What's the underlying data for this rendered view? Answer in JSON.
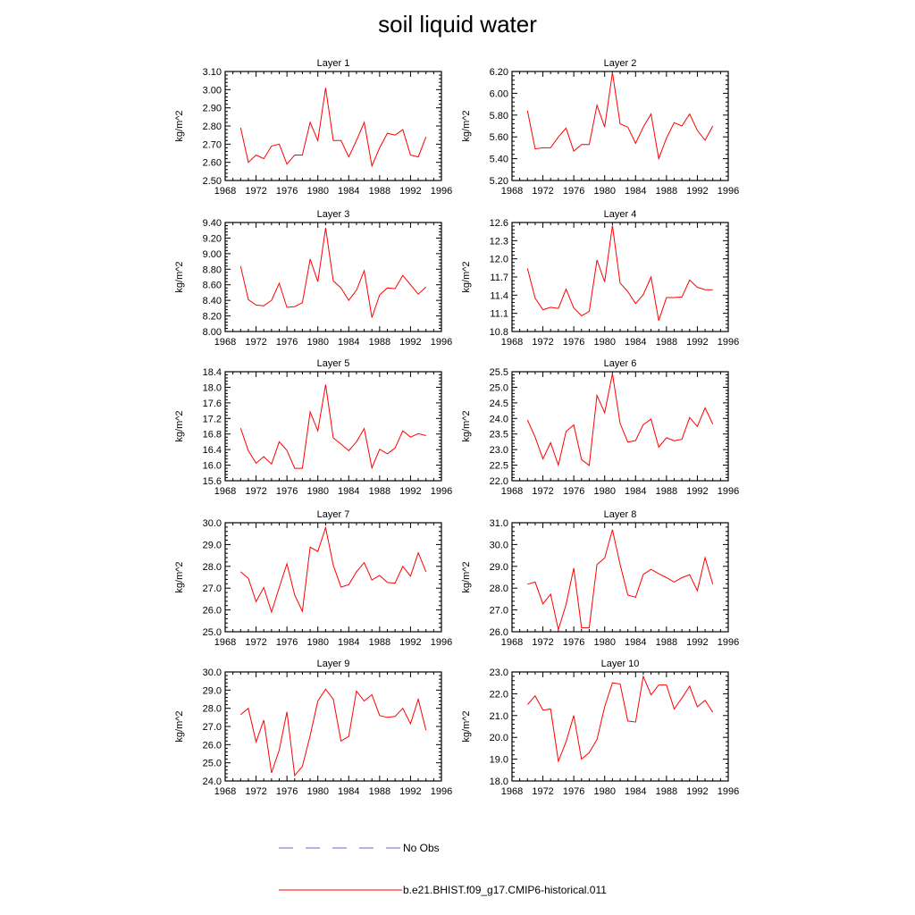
{
  "title": "soil liquid water",
  "legend": {
    "obs_label": "No Obs",
    "model_label": "b.e21.BHIST.f09_g17.CMIP6-historical.011",
    "obs_color": "#6666cc",
    "model_color": "#ff0000"
  },
  "chart_data": [
    {
      "type": "line",
      "title": "Layer 1",
      "ylabel": "kg/m^2",
      "xlim": [
        1968,
        1996
      ],
      "xticks": [
        1968,
        1972,
        1976,
        1980,
        1984,
        1988,
        1992,
        1996
      ],
      "ylim": [
        2.5,
        3.1
      ],
      "yticks": [
        2.5,
        2.6,
        2.7,
        2.8,
        2.9,
        3.0,
        3.1
      ],
      "ytick_decimals": 2,
      "series": [
        {
          "name": "b.e21.BHIST.f09_g17.CMIP6-historical.011",
          "color": "#ff0000",
          "x": [
            1970,
            1971,
            1972,
            1973,
            1974,
            1975,
            1976,
            1977,
            1978,
            1979,
            1980,
            1981,
            1982,
            1983,
            1984,
            1985,
            1986,
            1987,
            1988,
            1989,
            1990,
            1991,
            1992,
            1993,
            1994
          ],
          "y": [
            2.79,
            2.6,
            2.64,
            2.62,
            2.69,
            2.7,
            2.59,
            2.64,
            2.64,
            2.82,
            2.72,
            3.01,
            2.72,
            2.72,
            2.63,
            2.72,
            2.82,
            2.58,
            2.68,
            2.76,
            2.75,
            2.78,
            2.64,
            2.63,
            2.74
          ]
        }
      ]
    },
    {
      "type": "line",
      "title": "Layer 2",
      "ylabel": "kg/m^2",
      "xlim": [
        1968,
        1996
      ],
      "xticks": [
        1968,
        1972,
        1976,
        1980,
        1984,
        1988,
        1992,
        1996
      ],
      "ylim": [
        5.2,
        6.2
      ],
      "yticks": [
        5.2,
        5.4,
        5.6,
        5.8,
        6.0,
        6.2
      ],
      "ytick_decimals": 2,
      "series": [
        {
          "name": "b.e21.BHIST.f09_g17.CMIP6-historical.011",
          "color": "#ff0000",
          "x": [
            1970,
            1971,
            1972,
            1973,
            1974,
            1975,
            1976,
            1977,
            1978,
            1979,
            1980,
            1981,
            1982,
            1983,
            1984,
            1985,
            1986,
            1987,
            1988,
            1989,
            1990,
            1991,
            1992,
            1993,
            1994
          ],
          "y": [
            5.84,
            5.49,
            5.5,
            5.5,
            5.6,
            5.68,
            5.47,
            5.53,
            5.53,
            5.89,
            5.69,
            6.19,
            5.72,
            5.69,
            5.54,
            5.69,
            5.81,
            5.4,
            5.59,
            5.73,
            5.7,
            5.81,
            5.66,
            5.57,
            5.7
          ]
        }
      ]
    },
    {
      "type": "line",
      "title": "Layer 3",
      "ylabel": "kg/m^2",
      "xlim": [
        1968,
        1996
      ],
      "xticks": [
        1968,
        1972,
        1976,
        1980,
        1984,
        1988,
        1992,
        1996
      ],
      "ylim": [
        8.0,
        9.4
      ],
      "yticks": [
        8.0,
        8.2,
        8.4,
        8.6,
        8.8,
        9.0,
        9.2,
        9.4
      ],
      "ytick_decimals": 2,
      "series": [
        {
          "name": "b.e21.BHIST.f09_g17.CMIP6-historical.011",
          "color": "#ff0000",
          "x": [
            1970,
            1971,
            1972,
            1973,
            1974,
            1975,
            1976,
            1977,
            1978,
            1979,
            1980,
            1981,
            1982,
            1983,
            1984,
            1985,
            1986,
            1987,
            1988,
            1989,
            1990,
            1991,
            1992,
            1993,
            1994
          ],
          "y": [
            8.84,
            8.41,
            8.34,
            8.33,
            8.4,
            8.62,
            8.31,
            8.32,
            8.37,
            8.93,
            8.64,
            9.33,
            8.65,
            8.56,
            8.4,
            8.53,
            8.78,
            8.18,
            8.47,
            8.56,
            8.55,
            8.72,
            8.6,
            8.48,
            8.57
          ]
        }
      ]
    },
    {
      "type": "line",
      "title": "Layer 4",
      "ylabel": "kg/m^2",
      "xlim": [
        1968,
        1996
      ],
      "xticks": [
        1968,
        1972,
        1976,
        1980,
        1984,
        1988,
        1992,
        1996
      ],
      "ylim": [
        10.8,
        12.6
      ],
      "yticks": [
        10.8,
        11.1,
        11.4,
        11.7,
        12.0,
        12.3,
        12.6
      ],
      "ytick_decimals": 1,
      "series": [
        {
          "name": "b.e21.BHIST.f09_g17.CMIP6-historical.011",
          "color": "#ff0000",
          "x": [
            1970,
            1971,
            1972,
            1973,
            1974,
            1975,
            1976,
            1977,
            1978,
            1979,
            1980,
            1981,
            1982,
            1983,
            1984,
            1985,
            1986,
            1987,
            1988,
            1989,
            1990,
            1991,
            1992,
            1993,
            1994
          ],
          "y": [
            11.84,
            11.35,
            11.16,
            11.2,
            11.18,
            11.5,
            11.19,
            11.06,
            11.13,
            11.98,
            11.62,
            12.55,
            11.6,
            11.46,
            11.26,
            11.41,
            11.7,
            10.98,
            11.36,
            11.36,
            11.37,
            11.65,
            11.53,
            11.49,
            11.49
          ]
        }
      ]
    },
    {
      "type": "line",
      "title": "Layer 5",
      "ylabel": "kg/m^2",
      "xlim": [
        1968,
        1996
      ],
      "xticks": [
        1968,
        1972,
        1976,
        1980,
        1984,
        1988,
        1992,
        1996
      ],
      "ylim": [
        15.6,
        18.4
      ],
      "yticks": [
        15.6,
        16.0,
        16.4,
        16.8,
        17.2,
        17.6,
        18.0,
        18.4
      ],
      "ytick_decimals": 1,
      "series": [
        {
          "name": "b.e21.BHIST.f09_g17.CMIP6-historical.011",
          "color": "#ff0000",
          "x": [
            1970,
            1971,
            1972,
            1973,
            1974,
            1975,
            1976,
            1977,
            1978,
            1979,
            1980,
            1981,
            1982,
            1983,
            1984,
            1985,
            1986,
            1987,
            1988,
            1989,
            1990,
            1991,
            1992,
            1993,
            1994
          ],
          "y": [
            16.95,
            16.37,
            16.05,
            16.22,
            16.03,
            16.6,
            16.38,
            15.92,
            15.92,
            17.37,
            16.88,
            18.07,
            16.7,
            16.54,
            16.37,
            16.6,
            16.94,
            15.93,
            16.41,
            16.29,
            16.44,
            16.88,
            16.72,
            16.81,
            16.76
          ]
        }
      ]
    },
    {
      "type": "line",
      "title": "Layer 6",
      "ylabel": "kg/m^2",
      "xlim": [
        1968,
        1996
      ],
      "xticks": [
        1968,
        1972,
        1976,
        1980,
        1984,
        1988,
        1992,
        1996
      ],
      "ylim": [
        22.0,
        25.5
      ],
      "yticks": [
        22.0,
        22.5,
        23.0,
        23.5,
        24.0,
        24.5,
        25.0,
        25.5
      ],
      "ytick_decimals": 1,
      "series": [
        {
          "name": "b.e21.BHIST.f09_g17.CMIP6-historical.011",
          "color": "#ff0000",
          "x": [
            1970,
            1971,
            1972,
            1973,
            1974,
            1975,
            1976,
            1977,
            1978,
            1979,
            1980,
            1981,
            1982,
            1983,
            1984,
            1985,
            1986,
            1987,
            1988,
            1989,
            1990,
            1991,
            1992,
            1993,
            1994
          ],
          "y": [
            23.95,
            23.4,
            22.7,
            23.22,
            22.5,
            23.58,
            23.79,
            22.68,
            22.49,
            24.74,
            24.18,
            25.44,
            23.84,
            23.24,
            23.29,
            23.8,
            23.98,
            23.08,
            23.38,
            23.28,
            23.33,
            24.03,
            23.74,
            24.34,
            23.82
          ]
        }
      ]
    },
    {
      "type": "line",
      "title": "Layer 7",
      "ylabel": "kg/m^2",
      "xlim": [
        1968,
        1996
      ],
      "xticks": [
        1968,
        1972,
        1976,
        1980,
        1984,
        1988,
        1992,
        1996
      ],
      "ylim": [
        25.0,
        30.0
      ],
      "yticks": [
        25.0,
        26.0,
        27.0,
        28.0,
        29.0,
        30.0
      ],
      "ytick_decimals": 1,
      "series": [
        {
          "name": "b.e21.BHIST.f09_g17.CMIP6-historical.011",
          "color": "#ff0000",
          "x": [
            1970,
            1971,
            1972,
            1973,
            1974,
            1975,
            1976,
            1977,
            1978,
            1979,
            1980,
            1981,
            1982,
            1983,
            1984,
            1985,
            1986,
            1987,
            1988,
            1989,
            1990,
            1991,
            1992,
            1993,
            1994
          ],
          "y": [
            27.75,
            27.45,
            26.38,
            27.03,
            25.9,
            27.03,
            28.12,
            26.68,
            25.94,
            28.88,
            28.68,
            29.78,
            28.05,
            27.05,
            27.16,
            27.75,
            28.17,
            27.37,
            27.58,
            27.26,
            27.23,
            28.0,
            27.55,
            28.62,
            27.75
          ]
        }
      ]
    },
    {
      "type": "line",
      "title": "Layer 8",
      "ylabel": "kg/m^2",
      "xlim": [
        1968,
        1996
      ],
      "xticks": [
        1968,
        1972,
        1976,
        1980,
        1984,
        1988,
        1992,
        1996
      ],
      "ylim": [
        26.0,
        31.0
      ],
      "yticks": [
        26.0,
        27.0,
        28.0,
        29.0,
        30.0,
        31.0
      ],
      "ytick_decimals": 1,
      "series": [
        {
          "name": "b.e21.BHIST.f09_g17.CMIP6-historical.011",
          "color": "#ff0000",
          "x": [
            1970,
            1971,
            1972,
            1973,
            1974,
            1975,
            1976,
            1977,
            1978,
            1979,
            1980,
            1981,
            1982,
            1983,
            1984,
            1985,
            1986,
            1987,
            1988,
            1989,
            1990,
            1991,
            1992,
            1993,
            1994
          ],
          "y": [
            28.18,
            28.28,
            27.28,
            27.72,
            26.1,
            27.25,
            28.92,
            26.18,
            26.18,
            29.08,
            29.38,
            30.68,
            29.08,
            27.68,
            27.58,
            28.63,
            28.86,
            28.66,
            28.48,
            28.28,
            28.48,
            28.62,
            27.88,
            29.4,
            28.18
          ]
        }
      ]
    },
    {
      "type": "line",
      "title": "Layer 9",
      "ylabel": "kg/m^2",
      "xlim": [
        1968,
        1996
      ],
      "xticks": [
        1968,
        1972,
        1976,
        1980,
        1984,
        1988,
        1992,
        1996
      ],
      "ylim": [
        24.0,
        30.0
      ],
      "yticks": [
        24.0,
        25.0,
        26.0,
        27.0,
        28.0,
        29.0,
        30.0
      ],
      "ytick_decimals": 1,
      "series": [
        {
          "name": "b.e21.BHIST.f09_g17.CMIP6-historical.011",
          "color": "#ff0000",
          "x": [
            1970,
            1971,
            1972,
            1973,
            1974,
            1975,
            1976,
            1977,
            1978,
            1979,
            1980,
            1981,
            1982,
            1983,
            1984,
            1985,
            1986,
            1987,
            1988,
            1989,
            1990,
            1991,
            1992,
            1993,
            1994
          ],
          "y": [
            27.65,
            28.0,
            26.15,
            27.35,
            24.45,
            25.7,
            27.8,
            24.3,
            24.8,
            26.5,
            28.4,
            29.05,
            28.5,
            26.2,
            26.45,
            28.95,
            28.4,
            28.75,
            27.6,
            27.5,
            27.55,
            28.0,
            27.15,
            28.5,
            26.8
          ]
        }
      ]
    },
    {
      "type": "line",
      "title": "Layer 10",
      "ylabel": "kg/m^2",
      "xlim": [
        1968,
        1996
      ],
      "xticks": [
        1968,
        1972,
        1976,
        1980,
        1984,
        1988,
        1992,
        1996
      ],
      "ylim": [
        18.0,
        23.0
      ],
      "yticks": [
        18.0,
        19.0,
        20.0,
        21.0,
        22.0,
        23.0
      ],
      "ytick_decimals": 1,
      "series": [
        {
          "name": "b.e21.BHIST.f09_g17.CMIP6-historical.011",
          "color": "#ff0000",
          "x": [
            1970,
            1971,
            1972,
            1973,
            1974,
            1975,
            1976,
            1977,
            1978,
            1979,
            1980,
            1981,
            1982,
            1983,
            1984,
            1985,
            1986,
            1987,
            1988,
            1989,
            1990,
            1991,
            1992,
            1993,
            1994
          ],
          "y": [
            21.5,
            21.9,
            21.25,
            21.3,
            18.9,
            19.8,
            21.0,
            19.0,
            19.3,
            19.9,
            21.4,
            22.5,
            22.45,
            20.75,
            20.7,
            22.8,
            21.95,
            22.4,
            22.4,
            21.3,
            21.8,
            22.35,
            21.4,
            21.7,
            21.15
          ]
        }
      ]
    }
  ]
}
